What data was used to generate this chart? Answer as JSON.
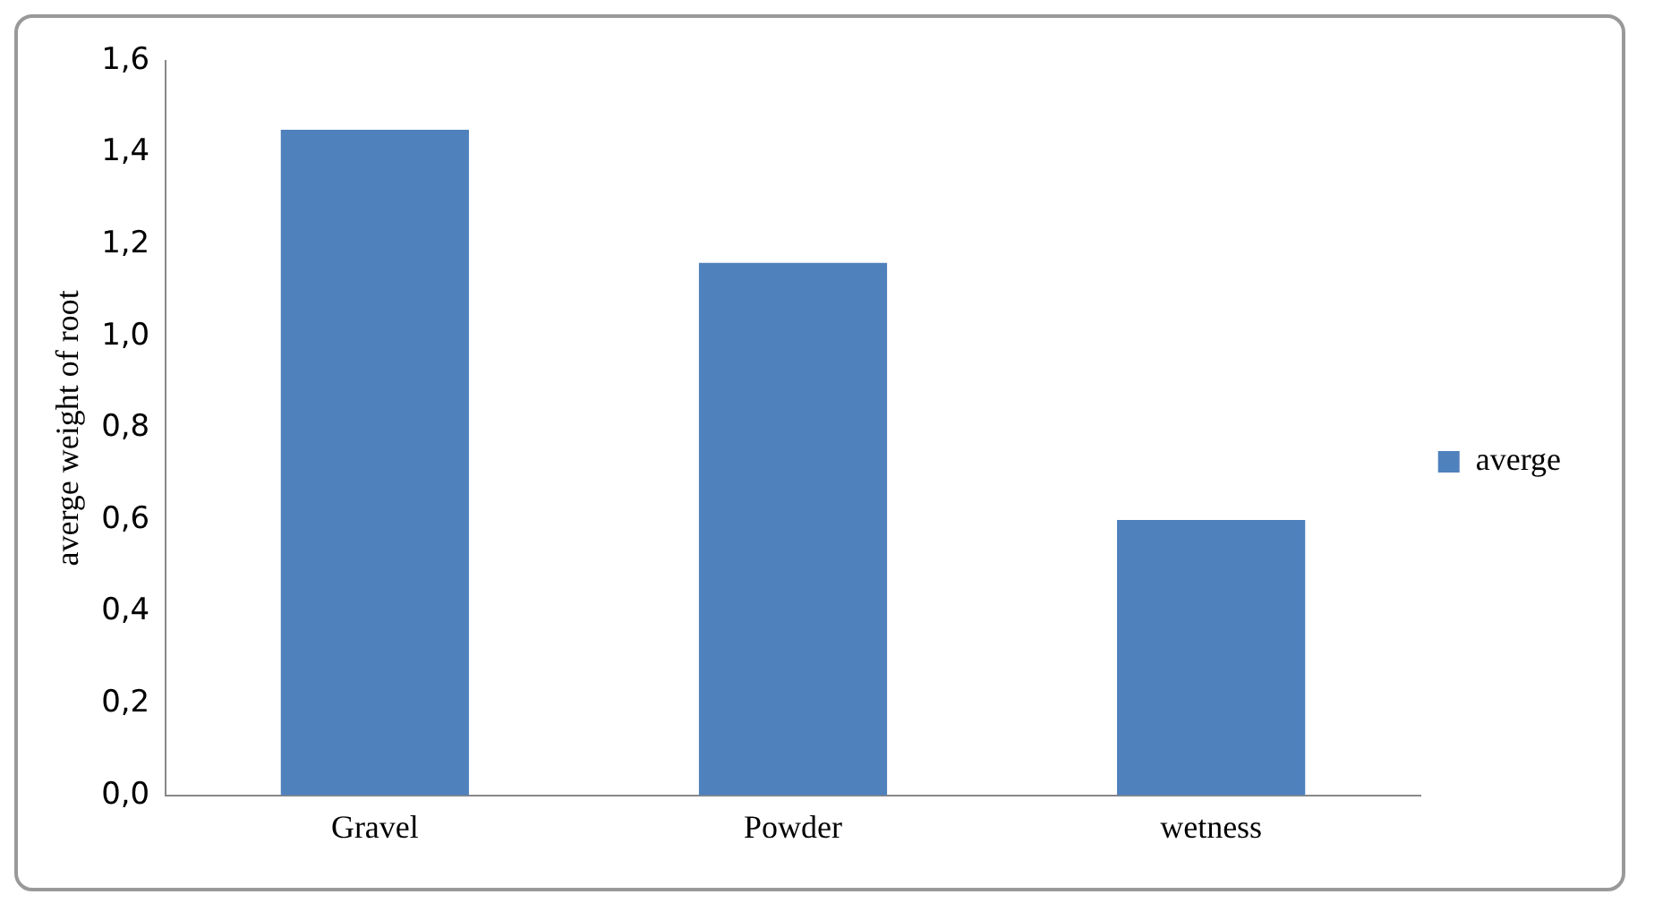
{
  "chart_data": {
    "type": "bar",
    "ylabel": "averge weight of root",
    "categories": [
      "Gravel",
      "Powder",
      "wetness"
    ],
    "series": [
      {
        "name": "averge",
        "color": "#4f81bd",
        "values": [
          1.45,
          1.16,
          0.6
        ]
      }
    ],
    "ylim": [
      0,
      1.6
    ],
    "yticks": [
      {
        "value": 0,
        "label": "0,0"
      },
      {
        "value": 0.2,
        "label": "0,2"
      },
      {
        "value": 0.4,
        "label": "0,4"
      },
      {
        "value": 0.6,
        "label": "0,6"
      },
      {
        "value": 0.8,
        "label": "0,8"
      },
      {
        "value": 1.0,
        "label": "1,0"
      },
      {
        "value": 1.2,
        "label": "1,2"
      },
      {
        "value": 1.4,
        "label": "1,4"
      },
      {
        "value": 1.6,
        "label": "1,6"
      }
    ],
    "grid": false,
    "legend": "right"
  }
}
